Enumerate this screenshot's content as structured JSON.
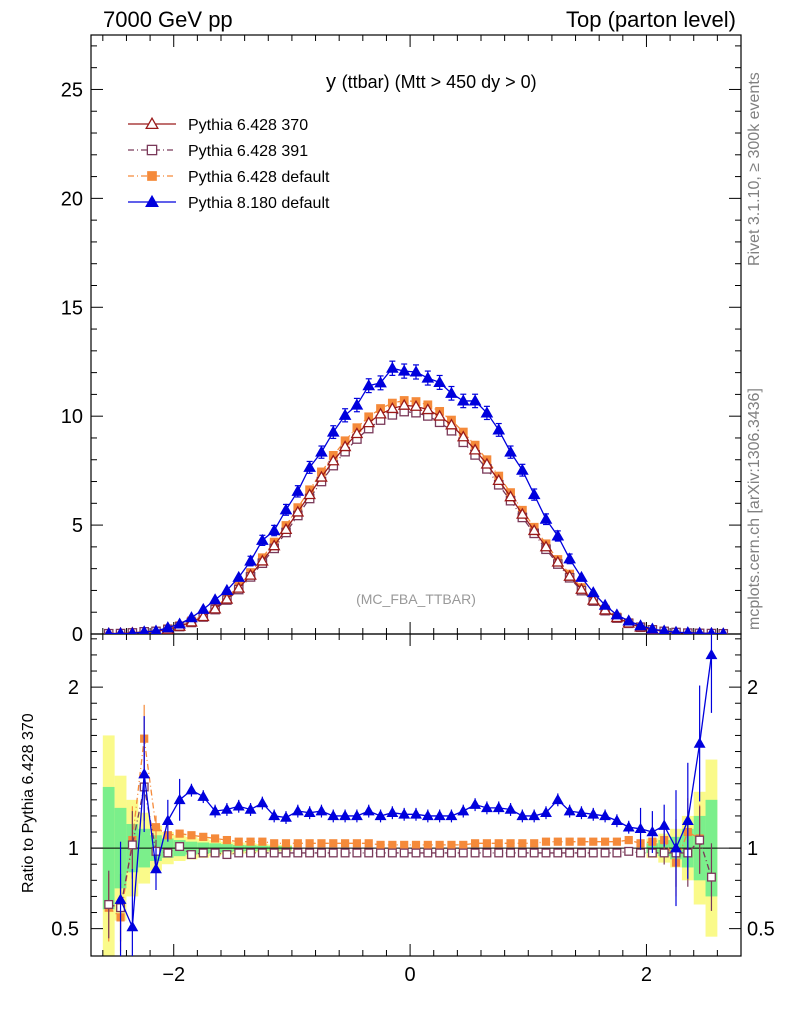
{
  "header": {
    "left": "7000 GeV pp",
    "right": "Top (parton level)"
  },
  "side_labels": {
    "rivet": "Rivet 3.1.10, ≥ 300k events",
    "mcplots": "mcplots.cern.ch [arXiv:1306.3436]"
  },
  "colors": {
    "p370": "#9a1a1a",
    "p391": "#7a3a5a",
    "pdef": "#f58a3a",
    "p8": "#0000dd",
    "band_green": "#7bef8b",
    "band_yellow": "#fafa8a"
  },
  "chart_data": {
    "type": "line",
    "title": "y (ttbar) (Mtt > 450 dy > 0)",
    "title_main": "y",
    "title_sub": "(ttbar) (Mtt > 450 dy > 0)",
    "watermark": "(MC_FBA_TTBAR)",
    "xlabel": "",
    "ylabel_ratio": "Ratio to Pythia 6.428 370",
    "xlim": [
      -2.7,
      2.8
    ],
    "ylim_main": [
      0,
      27.5
    ],
    "ylim_ratio": [
      0.33,
      2.33
    ],
    "xticks": [
      -2,
      0,
      2
    ],
    "xtick_labels": [
      "−2",
      "0",
      "2"
    ],
    "yticks_main": [
      0,
      5,
      10,
      15,
      20,
      25
    ],
    "ytick_labels_main": [
      "0",
      "5",
      "10",
      "15",
      "20",
      "25"
    ],
    "yticks_ratio": [
      0.5,
      1,
      2
    ],
    "ytick_labels_ratio": [
      "0.5",
      "1",
      "2"
    ],
    "legend": [
      {
        "key": "p370",
        "label": "Pythia 6.428 370",
        "marker": "triangle-open",
        "dash": "solid"
      },
      {
        "key": "p391",
        "label": "Pythia 6.428 391",
        "marker": "square-open",
        "dash": "dashdot"
      },
      {
        "key": "pdef",
        "label": "Pythia 6.428 default",
        "marker": "square-filled",
        "dash": "dashdot"
      },
      {
        "key": "p8",
        "label": "Pythia 8.180 default",
        "marker": "triangle-filled",
        "dash": "solid"
      }
    ],
    "x": [
      -2.55,
      -2.45,
      -2.35,
      -2.25,
      -2.15,
      -2.05,
      -1.95,
      -1.85,
      -1.75,
      -1.65,
      -1.55,
      -1.45,
      -1.35,
      -1.25,
      -1.15,
      -1.05,
      -0.95,
      -0.85,
      -0.75,
      -0.65,
      -0.55,
      -0.45,
      -0.35,
      -0.25,
      -0.15,
      -0.05,
      0.05,
      0.15,
      0.25,
      0.35,
      0.45,
      0.55,
      0.65,
      0.75,
      0.85,
      0.95,
      1.05,
      1.15,
      1.25,
      1.35,
      1.45,
      1.55,
      1.65,
      1.75,
      1.85,
      1.95,
      2.05,
      2.15,
      2.25,
      2.35,
      2.45,
      2.55,
      2.65
    ],
    "series": [
      {
        "key": "p370",
        "name": "Pythia 6.428 370",
        "values": [
          0.02,
          0.03,
          0.05,
          0.07,
          0.12,
          0.22,
          0.35,
          0.55,
          0.8,
          1.15,
          1.6,
          2.1,
          2.7,
          3.35,
          4.05,
          4.8,
          5.6,
          6.4,
          7.2,
          7.95,
          8.6,
          9.2,
          9.7,
          10.1,
          10.35,
          10.5,
          10.45,
          10.3,
          10.0,
          9.6,
          9.05,
          8.45,
          7.8,
          7.05,
          6.3,
          5.5,
          4.75,
          4.0,
          3.3,
          2.65,
          2.05,
          1.55,
          1.1,
          0.75,
          0.5,
          0.32,
          0.2,
          0.12,
          0.07,
          0.04,
          0.03,
          0.02,
          0.01
        ]
      },
      {
        "key": "p391",
        "name": "Pythia 6.428 391",
        "values": [
          0.013,
          0.019,
          0.05,
          0.1,
          0.12,
          0.21,
          0.34,
          0.53,
          0.78,
          1.12,
          1.56,
          2.04,
          2.62,
          3.25,
          3.93,
          4.66,
          5.44,
          6.22,
          7.0,
          7.73,
          8.37,
          8.95,
          9.43,
          9.82,
          10.06,
          10.21,
          10.16,
          10.01,
          9.72,
          9.33,
          8.8,
          8.22,
          7.58,
          6.85,
          6.12,
          5.35,
          4.62,
          3.89,
          3.21,
          2.58,
          1.99,
          1.51,
          1.07,
          0.73,
          0.49,
          0.31,
          0.19,
          0.12,
          0.07,
          0.04,
          0.03,
          0.02,
          0.01
        ]
      },
      {
        "key": "pdef",
        "name": "Pythia 6.428 default",
        "values": [
          0.013,
          0.017,
          0.052,
          0.117,
          0.14,
          0.24,
          0.38,
          0.6,
          0.85,
          1.21,
          1.68,
          2.2,
          2.82,
          3.5,
          4.22,
          4.98,
          5.8,
          6.62,
          7.44,
          8.2,
          8.87,
          9.47,
          9.97,
          10.35,
          10.6,
          10.72,
          10.67,
          10.52,
          10.22,
          9.82,
          9.27,
          8.67,
          8.0,
          7.25,
          6.49,
          5.68,
          4.9,
          4.14,
          3.42,
          2.75,
          2.13,
          1.61,
          1.14,
          0.78,
          0.52,
          0.33,
          0.21,
          0.125,
          0.064,
          0.044,
          0.03,
          0.02,
          0.01
        ]
      },
      {
        "key": "p8",
        "name": "Pythia 8.180 default",
        "values": [
          0.014,
          0.02,
          0.026,
          0.1,
          0.135,
          0.29,
          0.46,
          0.75,
          1.13,
          1.57,
          2.0,
          2.6,
          3.35,
          4.3,
          4.75,
          5.7,
          6.55,
          7.65,
          8.35,
          9.27,
          10.04,
          10.51,
          11.4,
          11.53,
          12.2,
          12.07,
          12.03,
          11.75,
          11.55,
          11.05,
          10.7,
          10.7,
          10.15,
          9.37,
          8.35,
          7.52,
          6.4,
          5.27,
          4.5,
          3.45,
          2.6,
          1.9,
          1.32,
          0.88,
          0.6,
          0.38,
          0.23,
          0.14,
          0.08,
          0.06,
          0.04,
          0.03,
          0.01
        ]
      }
    ],
    "ratio_series": [
      {
        "key": "p370",
        "values": [
          1,
          1,
          1,
          1,
          1,
          1,
          1,
          1,
          1,
          1,
          1,
          1,
          1,
          1,
          1,
          1,
          1,
          1,
          1,
          1,
          1,
          1,
          1,
          1,
          1,
          1,
          1,
          1,
          1,
          1,
          1,
          1,
          1,
          1,
          1,
          1,
          1,
          1,
          1,
          1,
          1,
          1,
          1,
          1,
          1,
          1,
          1,
          1,
          1,
          1,
          1,
          1,
          1
        ]
      },
      {
        "key": "p391",
        "values": [
          0.65,
          0.63,
          1.02,
          1.38,
          0.98,
          0.97,
          1.01,
          0.96,
          0.97,
          0.97,
          0.96,
          0.97,
          0.97,
          0.97,
          0.97,
          0.97,
          0.97,
          0.97,
          0.97,
          0.97,
          0.97,
          0.97,
          0.97,
          0.97,
          0.97,
          0.97,
          0.97,
          0.97,
          0.97,
          0.97,
          0.97,
          0.97,
          0.97,
          0.97,
          0.97,
          0.97,
          0.97,
          0.97,
          0.97,
          0.97,
          0.97,
          0.97,
          0.97,
          0.97,
          0.98,
          0.97,
          0.97,
          0.97,
          0.97,
          0.97,
          1.05,
          0.82,
          null
        ]
      },
      {
        "key": "pdef",
        "values": [
          0.63,
          0.57,
          1.05,
          1.68,
          1.13,
          1.08,
          1.09,
          1.08,
          1.07,
          1.06,
          1.05,
          1.04,
          1.04,
          1.04,
          1.03,
          1.03,
          1.03,
          1.03,
          1.03,
          1.03,
          1.03,
          1.03,
          1.03,
          1.02,
          1.02,
          1.02,
          1.02,
          1.02,
          1.02,
          1.02,
          1.02,
          1.03,
          1.03,
          1.03,
          1.03,
          1.03,
          1.03,
          1.04,
          1.04,
          1.04,
          1.04,
          1.04,
          1.04,
          1.04,
          1.05,
          1.03,
          1.04,
          1.05,
          0.91,
          1.1,
          1.06,
          null,
          null
        ]
      },
      {
        "key": "p8",
        "values": [
          null,
          0.68,
          0.51,
          1.46,
          0.87,
          1.17,
          1.3,
          1.36,
          1.32,
          1.23,
          1.24,
          1.26,
          1.24,
          1.28,
          1.2,
          1.19,
          1.23,
          1.22,
          1.23,
          1.2,
          1.2,
          1.2,
          1.23,
          1.2,
          1.22,
          1.21,
          1.21,
          1.2,
          1.2,
          1.2,
          1.23,
          1.27,
          1.25,
          1.25,
          1.24,
          1.2,
          1.2,
          1.22,
          1.3,
          1.23,
          1.22,
          1.21,
          1.2,
          1.17,
          1.13,
          1.12,
          1.1,
          1.14,
          1.0,
          1.17,
          1.65,
          2.2,
          null
        ]
      }
    ],
    "ratio_band": {
      "x": [
        -2.55,
        -2.45,
        -2.35,
        -2.25,
        -2.15,
        -2.05,
        -1.95,
        -1.85,
        -1.75,
        -1.65,
        -1.55,
        -1.45,
        -1.35,
        -1.25,
        -1.15,
        -1.05,
        2.05,
        2.15,
        2.25,
        2.35,
        2.45,
        2.55
      ],
      "green_halfwidth": [
        0.38,
        0.25,
        0.15,
        0.12,
        0.08,
        0.06,
        0.05,
        0.04,
        0.035,
        0.03,
        0.025,
        0.02,
        0.018,
        0.015,
        0.014,
        0.012,
        0.03,
        0.05,
        0.07,
        0.12,
        0.2,
        0.3
      ],
      "yellow_halfwidth": [
        0.7,
        0.45,
        0.3,
        0.22,
        0.14,
        0.1,
        0.08,
        0.07,
        0.06,
        0.05,
        0.04,
        0.035,
        0.03,
        0.025,
        0.022,
        0.02,
        0.06,
        0.09,
        0.12,
        0.2,
        0.35,
        0.55
      ]
    }
  }
}
